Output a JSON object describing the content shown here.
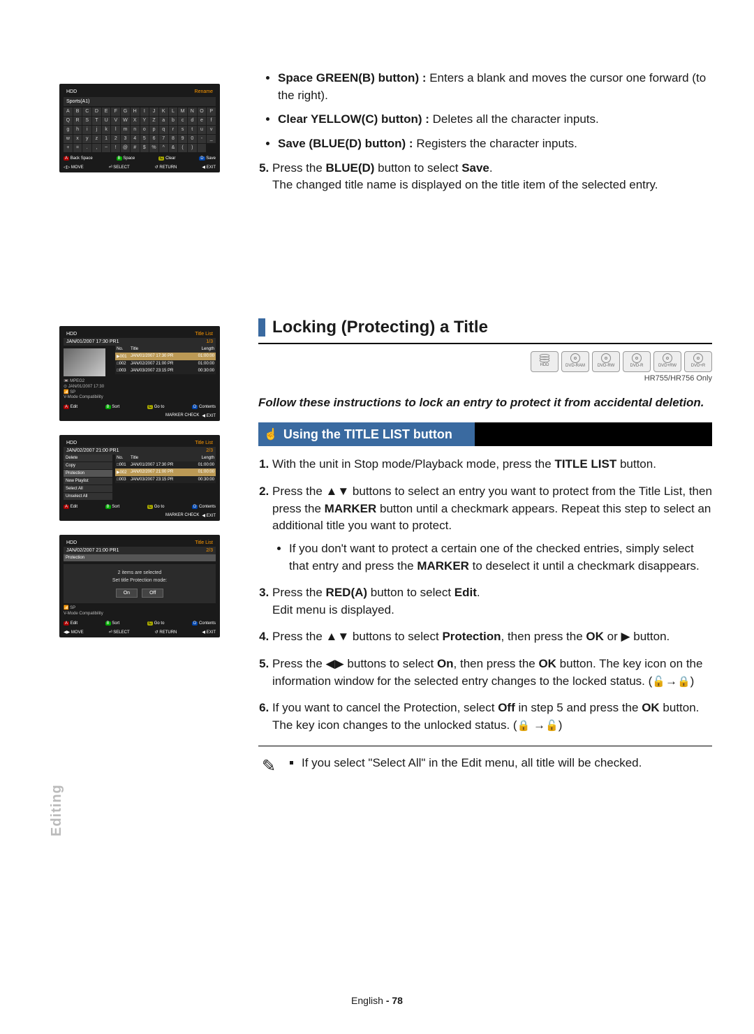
{
  "side_label": "Editing",
  "footer": {
    "lang": "English",
    "page": "- 78"
  },
  "top_bullets": [
    {
      "label": "Space GREEN(B) button) :",
      "rest": " Enters a blank and moves the cursor one forward (to the right)."
    },
    {
      "label": "Clear YELLOW(C) button) :",
      "rest": " Deletes all the character inputs."
    },
    {
      "label": "Save (BLUE(D) button) :",
      "rest": " Registers the character inputs."
    }
  ],
  "step5": {
    "num": "5.",
    "pre": "Press the ",
    "bold1": "BLUE(D)",
    "mid": " button to select ",
    "bold2": "Save",
    "after": "The changed title name is displayed on the title item of the selected entry."
  },
  "section_title": "Locking (Protecting) a Title",
  "model_note": "HR755/HR756 Only",
  "discs": [
    "HDD",
    "DVD-RAM",
    "DVD-RW",
    "DVD-R",
    "DVD+RW",
    "DVD+R"
  ],
  "lead_text": "Follow these instructions to lock an entry to protect it from accidental deletion.",
  "sub_title": "Using the TITLE LIST button",
  "steps": [
    {
      "n": "1.",
      "html": "With the unit in Stop mode/Playback mode, press the <b>TITLE LIST</b> button."
    },
    {
      "n": "2.",
      "html": "Press the ▲▼ buttons to select an entry you want to protect from the Title List, then press the <b>MARKER</b> button until a checkmark appears. Repeat this step to select an additional title you want to protect.",
      "sub": "If you don't want to protect a certain one of the checked entries, simply select that entry and press the <b>MARKER</b> to deselect it until a checkmark disappears."
    },
    {
      "n": "3.",
      "html": "Press the <b>RED(A)</b> button to select <b>Edit</b>.<br>Edit menu is displayed."
    },
    {
      "n": "4.",
      "html": "Press the ▲▼ buttons to select <b>Protection</b>, then press the <b>OK</b> or ▶ button."
    },
    {
      "n": "5.",
      "html": "Press the ◀▶ buttons to select <b>On</b>, then press the <b>OK</b> button. The key icon on the information window for the selected entry changes to the locked status. (<span class='lockglyph'>🔓</span>→<span class='lockglyph'>🔒</span>)"
    },
    {
      "n": "6.",
      "html": "If you want to cancel the Protection, select <b>Off</b> in step 5 and press the <b>OK</b> button. The key icon changes to the unlocked status. (<span class='lockglyph'>🔒</span> →<span class='lockglyph'>🔓</span>)"
    }
  ],
  "note": "If you select \"Select All\" in the Edit menu, all title will be checked.",
  "ss1": {
    "hdd": "HDD",
    "rename": "Rename",
    "title": "Sports(A1)",
    "keys": [
      "A",
      "B",
      "C",
      "D",
      "E",
      "F",
      "G",
      "H",
      "I",
      "J",
      "K",
      "L",
      "M",
      "N",
      "O",
      "P",
      "Q",
      "R",
      "S",
      "T",
      "U",
      "V",
      "W",
      "X",
      "Y",
      "Z",
      "a",
      "b",
      "c",
      "d",
      "e",
      "f",
      "g",
      "h",
      "i",
      "j",
      "k",
      "l",
      "m",
      "n",
      "o",
      "p",
      "q",
      "r",
      "s",
      "t",
      "u",
      "v",
      "w",
      "x",
      "y",
      "z",
      "1",
      "2",
      "3",
      "4",
      "5",
      "6",
      "7",
      "8",
      "9",
      "0",
      "-",
      "_",
      "+",
      "=",
      ".",
      ",",
      "~",
      "!",
      "@",
      "#",
      "$",
      "%",
      "^",
      "&",
      "(",
      ")",
      " "
    ],
    "ft": {
      "a": "Back Space",
      "b": "Space",
      "c": "Clear",
      "d": "Save",
      "move": "MOVE",
      "select": "SELECT",
      "return": "RETURN",
      "exit": "EXIT"
    }
  },
  "ss_list": {
    "hdd": "HDD",
    "tl": "Title List",
    "date": "JAN/01/2007 17:30 PR1",
    "idx": "1/3",
    "cols": {
      "no": "No.",
      "title": "Title",
      "len": "Length"
    },
    "rows": [
      {
        "no": "001",
        "t": "JAN/01/2007 17:30 PR",
        "l": "01:00:00"
      },
      {
        "no": "002",
        "t": "JAN/02/2007 21:00 PR",
        "l": "01:00:00"
      },
      {
        "no": "003",
        "t": "JAN/03/2007 23:15 PR",
        "l": "00:30:00"
      }
    ],
    "info": [
      "📼 MPEG2",
      "⊙ JAN/01/2007 17:30",
      "📶 SP",
      "V-Mode Compatibility"
    ],
    "ft": {
      "a": "Edit",
      "b": "Sort",
      "c": "Go to",
      "d": "Contents",
      "check": "CHECK",
      "exit": "EXIT"
    }
  },
  "ss_menu": {
    "hdd": "HDD",
    "tl": "Title List",
    "date": "JAN/02/2007 21:00 PR1",
    "idx": "2/3",
    "items": [
      "Delete",
      "Copy",
      "Protection",
      "New Playlist",
      "Select All",
      "Unselect All"
    ],
    "frag1": "7 21:00",
    "frag2": "atibility",
    "ft": {
      "a": "Edit",
      "b": "Sort",
      "c": "Go to",
      "d": "Contents",
      "check": "CHECK",
      "exit": "EXIT"
    }
  },
  "ss_dialog": {
    "hdd": "HDD",
    "tl": "Title List",
    "date": "JAN/02/2007 21:00 PR1",
    "idx": "2/3",
    "head": "Protection",
    "l1": "2 items are selected",
    "l2": "Set title Protection mode:",
    "on": "On",
    "off": "Off",
    "info1": "📶 SP",
    "info2": "V-Mode Compatibility",
    "ft": {
      "a": "Edit",
      "b": "Sort",
      "c": "Go to",
      "d": "Contents",
      "move": "MOVE",
      "select": "SELECT",
      "return": "RETURN",
      "exit": "EXIT"
    }
  }
}
